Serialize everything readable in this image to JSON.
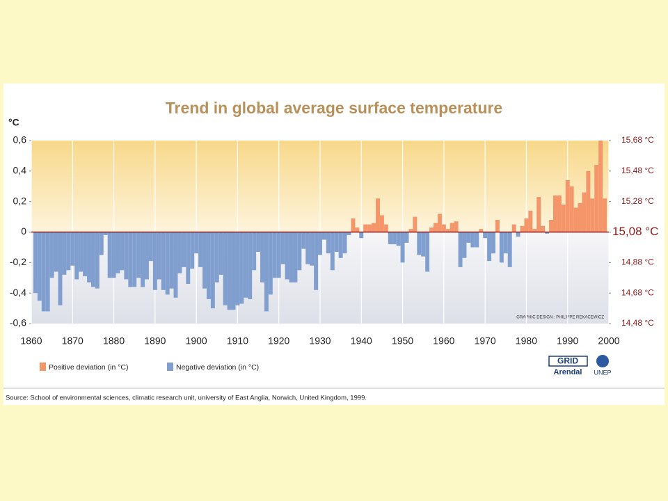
{
  "chart_data": {
    "type": "bar",
    "title": "Trend in global average surface temperature",
    "y_label": "°C",
    "credit": "GRAPHIC DESIGN : PHILIPPE REKACEWICZ",
    "source": "Source: School of environmental sciences, climatic research unit, university of East Anglia, Norwich, United Kingdom, 1999.",
    "logos": [
      "GRID",
      "Arendal",
      "UNEP"
    ],
    "legend": [
      {
        "name": "Positive deviation (in °C)",
        "color": "#f4956a"
      },
      {
        "name": "Negative deviation (in °C)",
        "color": "#809fcf"
      }
    ],
    "x": [
      1861,
      1862,
      1863,
      1864,
      1865,
      1866,
      1867,
      1868,
      1869,
      1870,
      1871,
      1872,
      1873,
      1874,
      1875,
      1876,
      1877,
      1878,
      1879,
      1880,
      1881,
      1882,
      1883,
      1884,
      1885,
      1886,
      1887,
      1888,
      1889,
      1890,
      1891,
      1892,
      1893,
      1894,
      1895,
      1896,
      1897,
      1898,
      1899,
      1900,
      1901,
      1902,
      1903,
      1904,
      1905,
      1906,
      1907,
      1908,
      1909,
      1910,
      1911,
      1912,
      1913,
      1914,
      1915,
      1916,
      1917,
      1918,
      1919,
      1920,
      1921,
      1922,
      1923,
      1924,
      1925,
      1926,
      1927,
      1928,
      1929,
      1930,
      1931,
      1932,
      1933,
      1934,
      1935,
      1936,
      1937,
      1938,
      1939,
      1940,
      1941,
      1942,
      1943,
      1944,
      1945,
      1946,
      1947,
      1948,
      1949,
      1950,
      1951,
      1952,
      1953,
      1954,
      1955,
      1956,
      1957,
      1958,
      1959,
      1960,
      1961,
      1962,
      1963,
      1964,
      1965,
      1966,
      1967,
      1968,
      1969,
      1970,
      1971,
      1972,
      1973,
      1974,
      1975,
      1976,
      1977,
      1978,
      1979,
      1980,
      1981,
      1982,
      1983,
      1984,
      1985,
      1986,
      1987,
      1988,
      1989,
      1990,
      1991,
      1992,
      1993,
      1994,
      1995,
      1996,
      1997,
      1998,
      1999
    ],
    "values": [
      -0.4,
      -0.45,
      -0.52,
      -0.52,
      -0.3,
      -0.26,
      -0.48,
      -0.28,
      -0.25,
      -0.22,
      -0.31,
      -0.26,
      -0.29,
      -0.33,
      -0.36,
      -0.37,
      -0.15,
      -0.02,
      -0.3,
      -0.3,
      -0.27,
      -0.25,
      -0.31,
      -0.36,
      -0.36,
      -0.3,
      -0.36,
      -0.31,
      -0.19,
      -0.38,
      -0.31,
      -0.38,
      -0.41,
      -0.37,
      -0.43,
      -0.27,
      -0.23,
      -0.34,
      -0.24,
      -0.14,
      -0.23,
      -0.37,
      -0.44,
      -0.5,
      -0.33,
      -0.28,
      -0.48,
      -0.51,
      -0.51,
      -0.48,
      -0.47,
      -0.43,
      -0.44,
      -0.25,
      -0.13,
      -0.33,
      -0.52,
      -0.41,
      -0.3,
      -0.3,
      -0.21,
      -0.31,
      -0.33,
      -0.33,
      -0.25,
      -0.11,
      -0.21,
      -0.22,
      -0.38,
      -0.15,
      -0.05,
      -0.14,
      -0.25,
      -0.13,
      -0.17,
      -0.14,
      -0.02,
      0.09,
      0.03,
      -0.04,
      0.05,
      0.05,
      0.06,
      0.22,
      0.11,
      0.05,
      -0.08,
      -0.08,
      -0.09,
      -0.2,
      -0.07,
      0.02,
      0.1,
      -0.15,
      -0.16,
      -0.26,
      0.03,
      0.06,
      0.12,
      0.05,
      0.02,
      0.06,
      0.07,
      -0.23,
      -0.17,
      -0.07,
      -0.1,
      -0.1,
      0.02,
      -0.04,
      -0.19,
      -0.14,
      0.08,
      -0.2,
      -0.14,
      -0.23,
      0.05,
      -0.03,
      0.04,
      0.09,
      0.14,
      0.02,
      0.23,
      0.04,
      -0.01,
      0.08,
      0.24,
      0.24,
      0.18,
      0.34,
      0.3,
      0.16,
      0.19,
      0.26,
      0.4,
      0.22,
      0.44,
      0.6,
      0.22
    ],
    "xlim": [
      1860,
      2000
    ],
    "xticks": [
      1860,
      1870,
      1880,
      1890,
      1900,
      1910,
      1920,
      1930,
      1940,
      1950,
      1960,
      1970,
      1980,
      1990,
      2000
    ],
    "ylim": [
      -0.6,
      0.6
    ],
    "yticks": [
      {
        "value": 0.6,
        "label": "0,6"
      },
      {
        "value": 0.4,
        "label": "0,4"
      },
      {
        "value": 0.2,
        "label": "0,2"
      },
      0,
      {
        "value": -0.2,
        "label": "-0,2"
      },
      {
        "value": -0.4,
        "label": "-0,4"
      },
      {
        "value": -0.6,
        "label": "-0,6"
      }
    ],
    "y2lim": [
      14.48,
      15.68
    ],
    "y2ticks": [
      {
        "value": 15.68,
        "label": "15,68 °C"
      },
      {
        "value": 15.48,
        "label": "15,48 °C"
      },
      {
        "value": 15.28,
        "label": "15,28 °C"
      },
      {
        "value": 15.08,
        "label": "15,08 °C"
      },
      {
        "value": 14.88,
        "label": "14,88 °C"
      },
      {
        "value": 14.68,
        "label": "14,68 °C"
      },
      {
        "value": 14.48,
        "label": "14,48 °C"
      }
    ],
    "grid": true
  }
}
